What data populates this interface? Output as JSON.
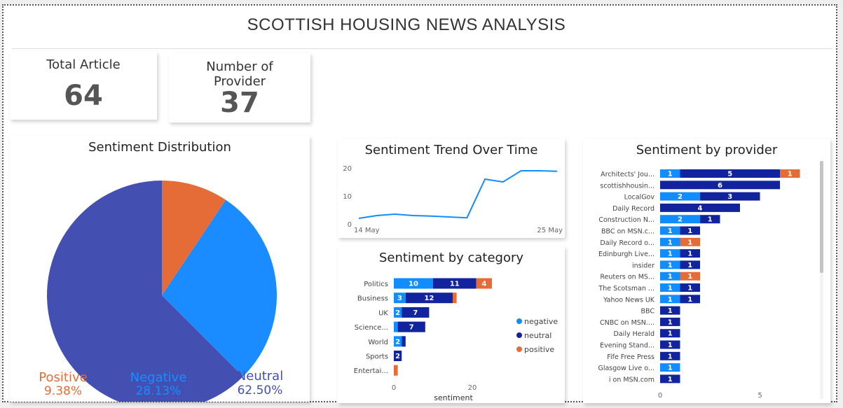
{
  "report": {
    "title": "SCOTTISH HOUSING NEWS ANALYSIS"
  },
  "kpis": [
    {
      "label": "Total Article",
      "value": "64"
    },
    {
      "label": "Number of Provider",
      "value": "37"
    }
  ],
  "colors": {
    "negative": "#118dff",
    "neutral": "#12239e",
    "positive": "#e66c37",
    "pie_negative": "#1a8cff",
    "pie_neutral": "#4350b2",
    "line": "#118dff"
  },
  "chart_data": [
    {
      "type": "pie",
      "title": "Sentiment Distribution",
      "slices": [
        {
          "name": "Positive",
          "value": 9.38,
          "label": "9.38%"
        },
        {
          "name": "Negative",
          "value": 28.13,
          "label": "28.13%"
        },
        {
          "name": "Neutral",
          "value": 62.5,
          "label": "62.50%"
        }
      ]
    },
    {
      "type": "line",
      "title": "Sentiment Trend Over Time",
      "x_tick_labels": [
        "14 May",
        "25 May"
      ],
      "y_ticks": [
        0,
        10,
        20
      ],
      "ylim": [
        0,
        22
      ],
      "y": [
        2,
        3,
        3.5,
        3,
        2.8,
        2.5,
        2.2,
        16,
        15,
        19,
        19,
        18.8
      ],
      "grid": false
    },
    {
      "type": "bar",
      "orientation": "horizontal",
      "stacked": true,
      "title": "Sentiment by category",
      "xlabel": "sentiment",
      "x_ticks": [
        0,
        20
      ],
      "xlim": [
        0,
        28
      ],
      "categories": [
        "Politics",
        "Business",
        "UK",
        "Science...",
        "World",
        "Sports",
        "Entertai..."
      ],
      "series": [
        {
          "name": "negative",
          "values": [
            10,
            3,
            2,
            1,
            2,
            0,
            0
          ]
        },
        {
          "name": "neutral",
          "values": [
            11,
            12,
            7,
            7,
            1,
            2,
            0
          ]
        },
        {
          "name": "positive",
          "values": [
            4,
            1,
            0,
            0,
            0,
            0,
            1
          ]
        }
      ],
      "legend": [
        "negative",
        "neutral",
        "positive"
      ],
      "legend_position": "right"
    },
    {
      "type": "bar",
      "orientation": "horizontal",
      "stacked": true,
      "title": "Sentiment by provider",
      "x_ticks": [
        0,
        5
      ],
      "xlim": [
        0,
        8.5
      ],
      "categories": [
        "Architects' Jou...",
        "scottishhousin...",
        "LocalGov",
        "Daily Record",
        "Construction N...",
        "BBC on MSN.c...",
        "Daily Record o...",
        "Edinburgh Live...",
        "insider",
        "Reuters on MS...",
        "The Scotsman ...",
        "Yahoo News UK",
        "BBC",
        "CNBC on MSN....",
        "Daily Herald",
        "Evening Stand...",
        "Fife Free Press",
        "Glasgow Live o...",
        "i on MSN.com"
      ],
      "series": [
        {
          "name": "negative",
          "values": [
            1,
            0,
            2,
            0,
            2,
            1,
            1,
            1,
            1,
            1,
            1,
            1,
            0,
            0,
            0,
            0,
            0,
            1,
            0
          ]
        },
        {
          "name": "neutral",
          "values": [
            5,
            6,
            3,
            4,
            1,
            1,
            0,
            1,
            1,
            0,
            1,
            1,
            1,
            1,
            1,
            1,
            1,
            0,
            1
          ]
        },
        {
          "name": "positive",
          "values": [
            1,
            0,
            0,
            0,
            0,
            0,
            1,
            0,
            0,
            1,
            0,
            0,
            0,
            0,
            0,
            0,
            0,
            0,
            0
          ]
        }
      ]
    }
  ]
}
